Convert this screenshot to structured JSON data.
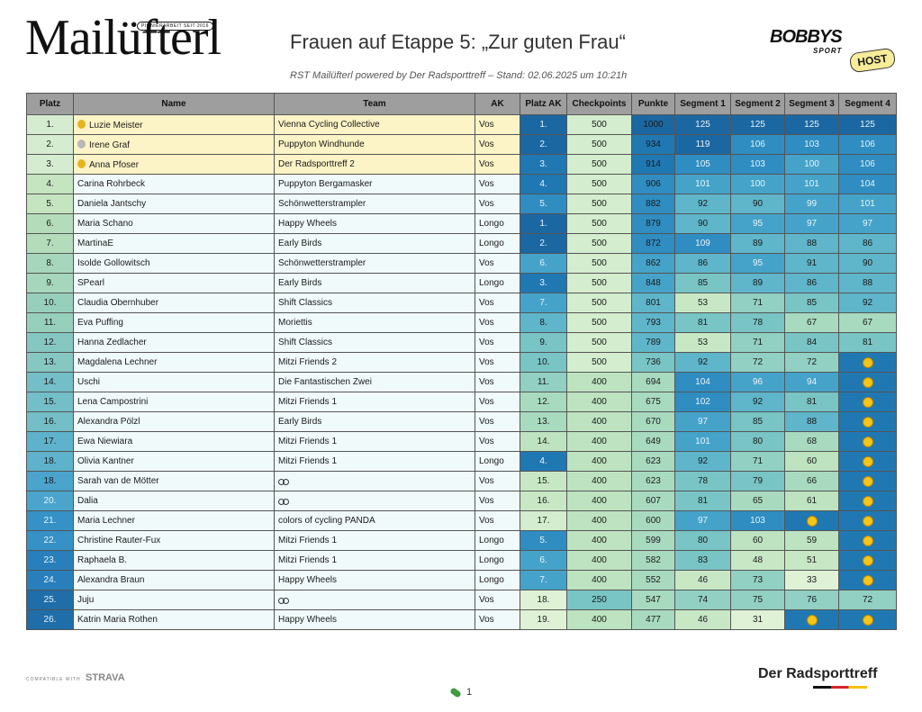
{
  "header": {
    "logo": "Mailüfterl",
    "logo_tagline": "PIONIERARBEIT SEIT 2016",
    "title": "Frauen auf Etappe 5: „Zur guten Frau“",
    "subtitle": "RST Mailüfterl powered by Der Radsporttreff – Stand: 02.06.2025 um 10:21h",
    "sponsor": "BOBBYS",
    "sponsor_sub": "SPORT",
    "host_badge": "HOST"
  },
  "colors": {
    "header_bg": "#9e9e9e",
    "row_tone": [
      "#d6ecd0",
      "#c5e4c0",
      "#b4dcbb",
      "#a6d6bb",
      "#97cfbd",
      "#86c7c2",
      "#74bec8",
      "#5fb2cc",
      "#4aa4cc",
      "#3591c6",
      "#287fbb",
      "#1f6da9"
    ],
    "medal_row_bg": "#fcf4c6",
    "light_cell": "#f0fafb",
    "points_cell": "#c9eac0",
    "col_tone": [
      "#dff2d6",
      "#d3edce",
      "#c8e8c5",
      "#bde3c0",
      "#a8dac0",
      "#91d0c2",
      "#79c4c5",
      "#5fb5ca",
      "#45a3c9",
      "#2f8dc1",
      "#2078b3",
      "#1b67a2"
    ]
  },
  "table": {
    "columns": [
      "Platz",
      "Name",
      "Team",
      "AK",
      "Platz AK",
      "Checkpoints",
      "Punkte",
      "Segment 1",
      "Segment 2",
      "Segment 3",
      "Segment 4"
    ],
    "rows": [
      {
        "platz": "1.",
        "name": "Luzie Meister",
        "medal": "gold-medal-icon",
        "team": "Vienna Cycling Collective",
        "ak": "Vos",
        "platz_ak": "1.",
        "checkpoints": "500",
        "punkte": "1000",
        "seg1": "125",
        "seg2": "125",
        "seg3": "125",
        "seg4": "125"
      },
      {
        "platz": "2.",
        "name": "Irene Graf",
        "medal": "silver-medal-icon",
        "team": "Puppyton Windhunde",
        "ak": "Vos",
        "platz_ak": "2.",
        "checkpoints": "500",
        "punkte": "934",
        "seg1": "119",
        "seg2": "106",
        "seg3": "103",
        "seg4": "106"
      },
      {
        "platz": "3.",
        "name": "Anna Pfoser",
        "medal": "gold-medal-icon",
        "team": "Der Radsporttreff 2",
        "ak": "Vos",
        "platz_ak": "3.",
        "checkpoints": "500",
        "punkte": "914",
        "seg1": "105",
        "seg2": "103",
        "seg3": "100",
        "seg4": "106"
      },
      {
        "platz": "4.",
        "name": "Carina Rohrbeck",
        "team": "Puppyton Bergamasker",
        "ak": "Vos",
        "platz_ak": "4.",
        "checkpoints": "500",
        "punkte": "906",
        "seg1": "101",
        "seg2": "100",
        "seg3": "101",
        "seg4": "104"
      },
      {
        "platz": "5.",
        "name": "Daniela Jantschy",
        "team": "Schönwetterstrampler",
        "ak": "Vos",
        "platz_ak": "5.",
        "checkpoints": "500",
        "punkte": "882",
        "seg1": "92",
        "seg2": "90",
        "seg3": "99",
        "seg4": "101"
      },
      {
        "platz": "6.",
        "name": "Maria Schano",
        "team": "Happy Wheels",
        "ak": "Longo",
        "platz_ak": "1.",
        "checkpoints": "500",
        "punkte": "879",
        "seg1": "90",
        "seg2": "95",
        "seg3": "97",
        "seg4": "97"
      },
      {
        "platz": "7.",
        "name": "MartinaE",
        "team": "Early Birds",
        "ak": "Longo",
        "platz_ak": "2.",
        "checkpoints": "500",
        "punkte": "872",
        "seg1": "109",
        "seg2": "89",
        "seg3": "88",
        "seg4": "86"
      },
      {
        "platz": "8.",
        "name": "Isolde Gollowitsch",
        "team": "Schönwetterstrampler",
        "ak": "Vos",
        "platz_ak": "6.",
        "checkpoints": "500",
        "punkte": "862",
        "seg1": "86",
        "seg2": "95",
        "seg3": "91",
        "seg4": "90"
      },
      {
        "platz": "9.",
        "name": "SPearl",
        "team": "Early Birds",
        "ak": "Longo",
        "platz_ak": "3.",
        "checkpoints": "500",
        "punkte": "848",
        "seg1": "85",
        "seg2": "89",
        "seg3": "86",
        "seg4": "88"
      },
      {
        "platz": "10.",
        "name": "Claudia Obernhuber",
        "team": "Shift Classics",
        "ak": "Vos",
        "platz_ak": "7.",
        "checkpoints": "500",
        "punkte": "801",
        "seg1": "53",
        "seg2": "71",
        "seg3": "85",
        "seg4": "92"
      },
      {
        "platz": "11.",
        "name": "Eva Puffing",
        "team": "Moriettis",
        "ak": "Vos",
        "platz_ak": "8.",
        "checkpoints": "500",
        "punkte": "793",
        "seg1": "81",
        "seg2": "78",
        "seg3": "67",
        "seg4": "67"
      },
      {
        "platz": "12.",
        "name": "Hanna Zedlacher",
        "team": "Shift Classics",
        "ak": "Vos",
        "platz_ak": "9.",
        "checkpoints": "500",
        "punkte": "789",
        "seg1": "53",
        "seg2": "71",
        "seg3": "84",
        "seg4": "81"
      },
      {
        "platz": "13.",
        "name": "Magdalena Lechner",
        "team": "Mitzi Friends 2",
        "ak": "Vos",
        "platz_ak": "10.",
        "checkpoints": "500",
        "punkte": "736",
        "seg1": "92",
        "seg2": "72",
        "seg3": "72",
        "seg4": "smiley-icon"
      },
      {
        "platz": "14.",
        "name": "Uschi",
        "team": "Die Fantastischen Zwei",
        "ak": "Vos",
        "platz_ak": "11.",
        "checkpoints": "400",
        "punkte": "694",
        "seg1": "104",
        "seg2": "96",
        "seg3": "94",
        "seg4": "smiley-icon"
      },
      {
        "platz": "15.",
        "name": "Lena Campostrini",
        "team": "Mitzi Friends 1",
        "ak": "Vos",
        "platz_ak": "12.",
        "checkpoints": "400",
        "punkte": "675",
        "seg1": "102",
        "seg2": "92",
        "seg3": "81",
        "seg4": "smiley-icon"
      },
      {
        "platz": "16.",
        "name": "Alexandra Pölzl",
        "team": "Early Birds",
        "ak": "Vos",
        "platz_ak": "13.",
        "checkpoints": "400",
        "punkte": "670",
        "seg1": "97",
        "seg2": "85",
        "seg3": "88",
        "seg4": "smiley-icon"
      },
      {
        "platz": "17.",
        "name": "Ewa Niewiara",
        "team": "Mitzi Friends 1",
        "ak": "Vos",
        "platz_ak": "14.",
        "checkpoints": "400",
        "punkte": "649",
        "seg1": "101",
        "seg2": "80",
        "seg3": "68",
        "seg4": "smiley-icon"
      },
      {
        "platz": "18.",
        "name": "Olivia Kantner",
        "team": "Mitzi Friends 1",
        "ak": "Longo",
        "platz_ak": "4.",
        "checkpoints": "400",
        "punkte": "623",
        "seg1": "92",
        "seg2": "71",
        "seg3": "60",
        "seg4": "smiley-icon"
      },
      {
        "platz": "18.",
        "name": "Sarah van de Mötter",
        "team": "bicycle-icon",
        "ak": "Vos",
        "platz_ak": "15.",
        "checkpoints": "400",
        "punkte": "623",
        "seg1": "78",
        "seg2": "79",
        "seg3": "66",
        "seg4": "smiley-icon"
      },
      {
        "platz": "20.",
        "name": "Dalia",
        "team": "bicycle-icon",
        "ak": "Vos",
        "platz_ak": "16.",
        "checkpoints": "400",
        "punkte": "607",
        "seg1": "81",
        "seg2": "65",
        "seg3": "61",
        "seg4": "smiley-icon"
      },
      {
        "platz": "21.",
        "name": "Maria Lechner",
        "team": "colors of cycling PANDA",
        "ak": "Vos",
        "platz_ak": "17.",
        "checkpoints": "400",
        "punkte": "600",
        "seg1": "97",
        "seg2": "103",
        "seg3": "smiley-icon",
        "seg4": "smiley-icon"
      },
      {
        "platz": "22.",
        "name": "Christine Rauter-Fux",
        "team": "Mitzi Friends 1",
        "ak": "Longo",
        "platz_ak": "5.",
        "checkpoints": "400",
        "punkte": "599",
        "seg1": "80",
        "seg2": "60",
        "seg3": "59",
        "seg4": "smiley-icon"
      },
      {
        "platz": "23.",
        "name": "Raphaela B.",
        "team": "Mitzi Friends 1",
        "ak": "Longo",
        "platz_ak": "6.",
        "checkpoints": "400",
        "punkte": "582",
        "seg1": "83",
        "seg2": "48",
        "seg3": "51",
        "seg4": "smiley-icon"
      },
      {
        "platz": "24.",
        "name": "Alexandra Braun",
        "team": "Happy Wheels",
        "ak": "Longo",
        "platz_ak": "7.",
        "checkpoints": "400",
        "punkte": "552",
        "seg1": "46",
        "seg2": "73",
        "seg3": "33",
        "seg4": "smiley-icon"
      },
      {
        "platz": "25.",
        "name": "Juju",
        "team": "bicycle-icon",
        "ak": "Vos",
        "platz_ak": "18.",
        "checkpoints": "250",
        "punkte": "547",
        "seg1": "74",
        "seg2": "75",
        "seg3": "76",
        "seg4": "72"
      },
      {
        "platz": "26.",
        "name": "Katrin Maria Rothen",
        "team": "Happy Wheels",
        "ak": "Vos",
        "platz_ak": "19.",
        "checkpoints": "400",
        "punkte": "477",
        "seg1": "46",
        "seg2": "31",
        "seg3": "smiley-icon",
        "seg4": "smiley-icon"
      }
    ]
  },
  "footer": {
    "strava_prefix": "COMPATIBLE WITH",
    "strava_brand": "STRAVA",
    "brand": "Der Radsporttreff",
    "page_number": "1",
    "page_icon": "green-pill-icon"
  }
}
